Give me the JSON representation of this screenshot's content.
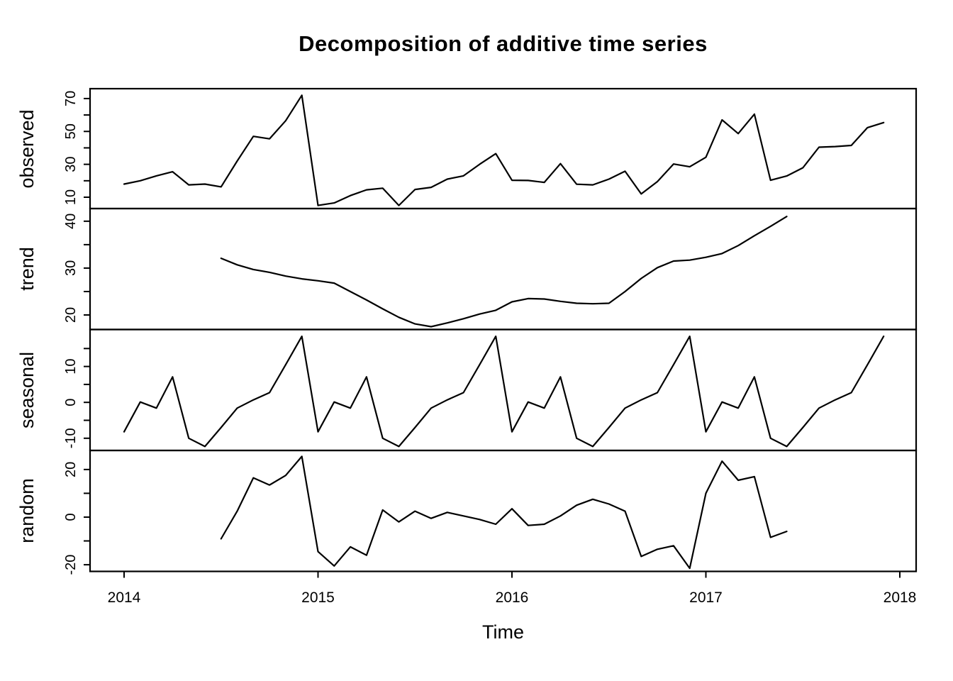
{
  "title": "Decomposition of additive time series",
  "xlabel": "Time",
  "colors": {
    "background": "#ffffff",
    "line": "#000000",
    "text": "#000000"
  },
  "chart_data": {
    "type": "line",
    "layout": "four stacked panels sharing one x axis, grid off, black lines on white",
    "x_start_year": 2014,
    "frequency_per_year": 12,
    "n_points": 48,
    "x_ticks": [
      {
        "value": 2014,
        "label": "2014"
      },
      {
        "value": 2015,
        "label": "2015"
      },
      {
        "value": 2016,
        "label": "2016"
      },
      {
        "value": 2017,
        "label": "2017"
      },
      {
        "value": 2018,
        "label": "2018"
      }
    ],
    "panels": [
      {
        "label": "observed",
        "ylim": [
          3.1,
          76.0
        ],
        "y_ticks": [
          {
            "value": 10,
            "label": "10"
          },
          {
            "value": 20,
            "label": ""
          },
          {
            "value": 30,
            "label": "30"
          },
          {
            "value": 40,
            "label": ""
          },
          {
            "value": 50,
            "label": "50"
          },
          {
            "value": 60,
            "label": ""
          },
          {
            "value": 70,
            "label": "70"
          }
        ],
        "values": [
          18,
          20,
          23,
          25.5,
          17.5,
          18,
          16.3,
          32,
          47,
          45.5,
          56.5,
          72,
          5,
          6.5,
          11,
          14.5,
          15.5,
          5,
          14.7,
          16,
          21,
          23,
          30,
          36.5,
          20.3,
          20.2,
          19,
          30.4,
          17.9,
          17.5,
          21,
          25.8,
          12,
          19.5,
          30.2,
          28.5,
          34.3,
          57,
          48.7,
          60.5,
          20.3,
          22.9,
          27.9,
          40.4,
          40.8,
          41.5,
          52.3,
          55.4
        ]
      },
      {
        "label": "trend",
        "ylim": [
          16.9,
          42.7
        ],
        "y_ticks": [
          {
            "value": 20,
            "label": "20"
          },
          {
            "value": 25,
            "label": ""
          },
          {
            "value": 30,
            "label": "30"
          },
          {
            "value": 35,
            "label": ""
          },
          {
            "value": 40,
            "label": "40"
          }
        ],
        "values": [
          null,
          null,
          null,
          null,
          null,
          null,
          32.1,
          30.7,
          29.7,
          29.1,
          28.3,
          27.7,
          27.3,
          26.8,
          25.0,
          23.2,
          21.3,
          19.5,
          18.1,
          17.5,
          18.3,
          19.2,
          20.2,
          21.0,
          22.8,
          23.5,
          23.4,
          22.9,
          22.5,
          22.4,
          22.5,
          25.0,
          27.8,
          30.1,
          31.5,
          31.7,
          32.3,
          33.1,
          34.8,
          36.9,
          38.9,
          41.0,
          null,
          null,
          null,
          null,
          null,
          null
        ]
      },
      {
        "label": "seasonal",
        "ylim": [
          -13.4,
          20.3
        ],
        "y_ticks": [
          {
            "value": -10,
            "label": "-10"
          },
          {
            "value": -5,
            "label": ""
          },
          {
            "value": 0,
            "label": "0"
          },
          {
            "value": 5,
            "label": ""
          },
          {
            "value": 10,
            "label": "10"
          },
          {
            "value": 15,
            "label": ""
          }
        ],
        "values": [
          -8.2,
          0.1,
          -1.6,
          7.1,
          -10,
          -12.3,
          -7,
          -1.6,
          0.7,
          2.7,
          10.5,
          18.4,
          -8.2,
          0.1,
          -1.6,
          7.1,
          -10,
          -12.3,
          -7,
          -1.6,
          0.7,
          2.7,
          10.5,
          18.4,
          -8.2,
          0.1,
          -1.6,
          7.1,
          -10,
          -12.3,
          -7,
          -1.6,
          0.7,
          2.7,
          10.5,
          18.4,
          -8.2,
          0.1,
          -1.6,
          7.1,
          -10,
          -12.3,
          -7,
          -1.6,
          0.7,
          2.7,
          10.5,
          18.4
        ]
      },
      {
        "label": "random",
        "ylim": [
          -22.8,
          28.0
        ],
        "y_ticks": [
          {
            "value": -20,
            "label": "-20"
          },
          {
            "value": -10,
            "label": ""
          },
          {
            "value": 0,
            "label": "0"
          },
          {
            "value": 10,
            "label": ""
          },
          {
            "value": 20,
            "label": "20"
          }
        ],
        "values": [
          null,
          null,
          null,
          null,
          null,
          null,
          -9.1,
          2.5,
          16.5,
          13.5,
          17.5,
          25.5,
          -14.5,
          -20.5,
          -12.5,
          -16,
          3,
          -2,
          2.5,
          -0.5,
          2,
          0.5,
          -1,
          -3,
          3.5,
          -3.5,
          -3,
          0.5,
          5,
          7.5,
          5.5,
          2.5,
          -16.5,
          -13.5,
          -12,
          -21.5,
          10,
          23.5,
          15.5,
          17,
          -8.5,
          -6,
          null,
          null,
          null,
          null,
          null,
          null
        ]
      }
    ]
  }
}
